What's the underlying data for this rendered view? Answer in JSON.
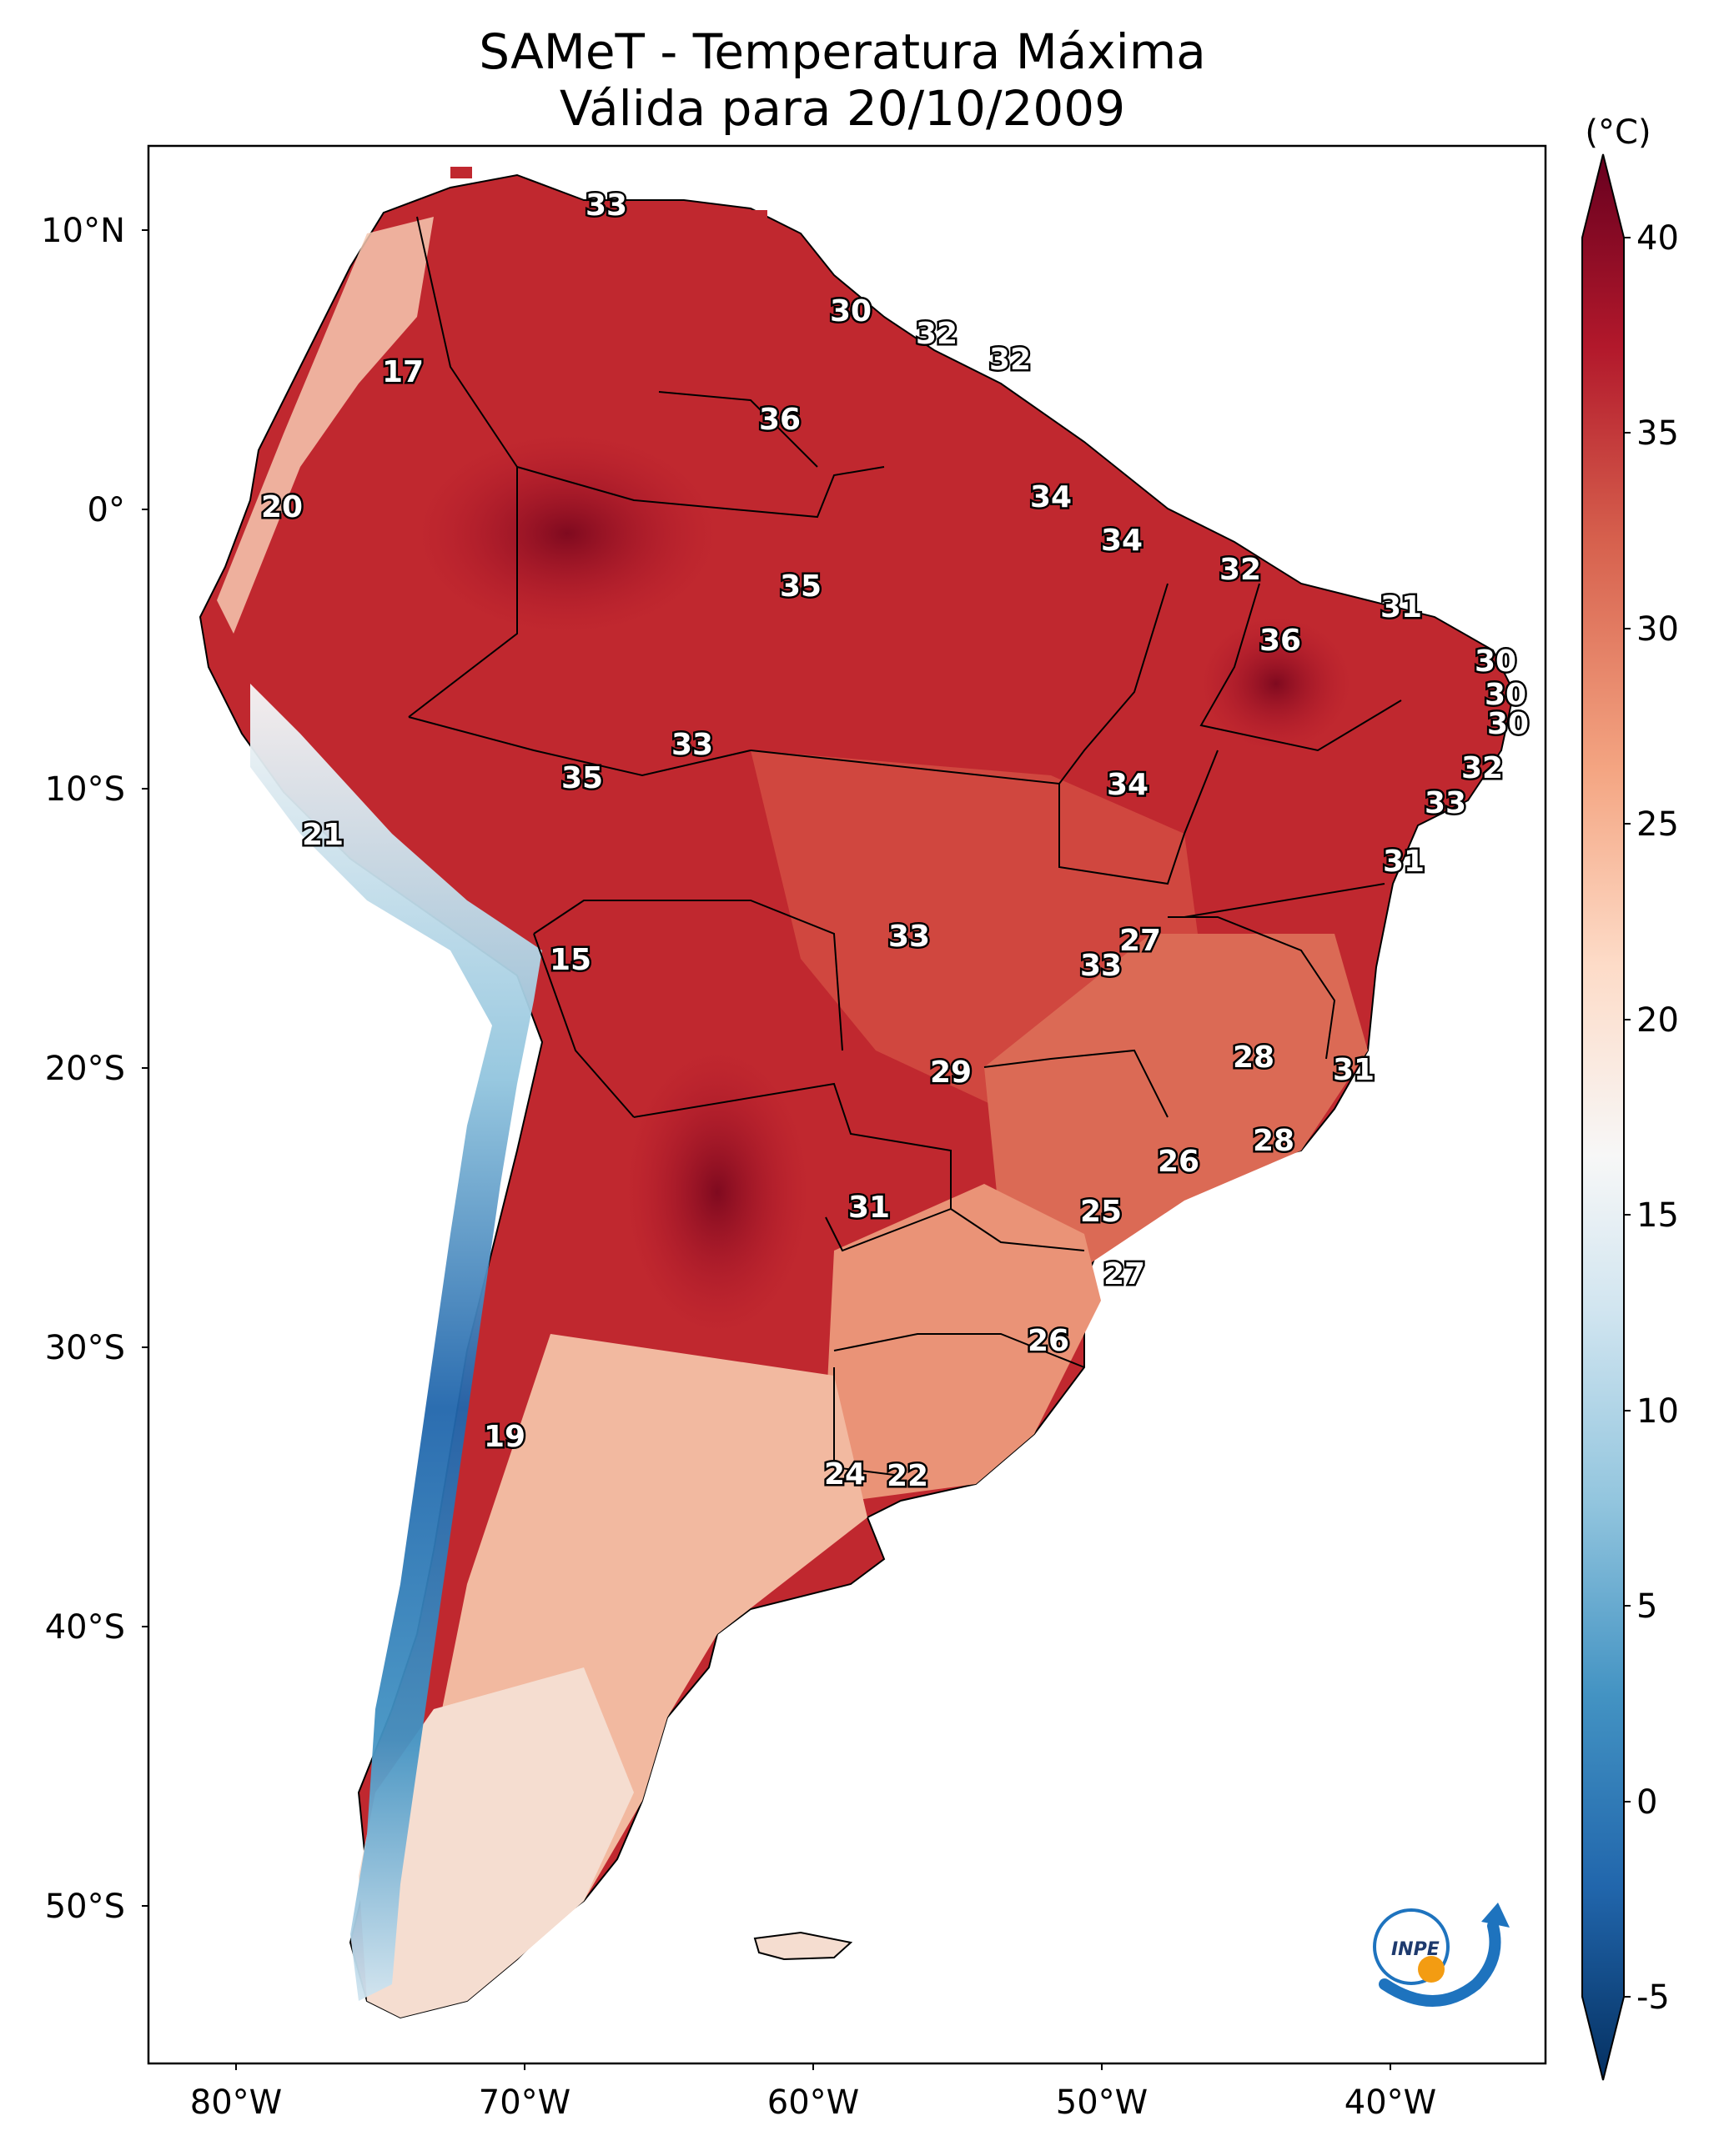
{
  "title": {
    "line1": "SAMeT - Temperatura Máxima",
    "line2": "Válida para 20/10/2009"
  },
  "colorbar": {
    "unit": "(°C)",
    "ticks": [
      "40",
      "35",
      "30",
      "25",
      "20",
      "15",
      "10",
      "5",
      "0",
      "-5"
    ],
    "colormap": [
      "#053061",
      "#2166ac",
      "#4393c3",
      "#92c5de",
      "#d1e5f0",
      "#f7f7f7",
      "#fddbc7",
      "#f4a582",
      "#d6604d",
      "#b2182b",
      "#67001f"
    ]
  },
  "axes": {
    "longitude_labels": [
      "80°W",
      "70°W",
      "60°W",
      "50°W",
      "40°W"
    ],
    "latitude_labels": [
      "10°N",
      "0°",
      "10°S",
      "20°S",
      "30°S",
      "40°S",
      "50°S"
    ]
  },
  "map": {
    "region": "South America",
    "colors": {
      "hot": "#b2182b",
      "warm": "#d6604d",
      "mild": "#f4a582",
      "cool": "#f7f7f7",
      "cold": "#4393c3",
      "border": "#000000"
    },
    "contour_labels": [
      "33",
      "30",
      "32",
      "32",
      "17",
      "36",
      "20",
      "34",
      "34",
      "35",
      "32",
      "31",
      "36",
      "30",
      "30",
      "30",
      "33",
      "35",
      "32",
      "34",
      "33",
      "21",
      "31",
      "15",
      "33",
      "27",
      "33",
      "28",
      "29",
      "31",
      "26",
      "28",
      "31",
      "25",
      "27",
      "26",
      "19",
      "24",
      "22"
    ]
  },
  "logo": {
    "text": "INPE",
    "icon": "inpe-logo"
  }
}
